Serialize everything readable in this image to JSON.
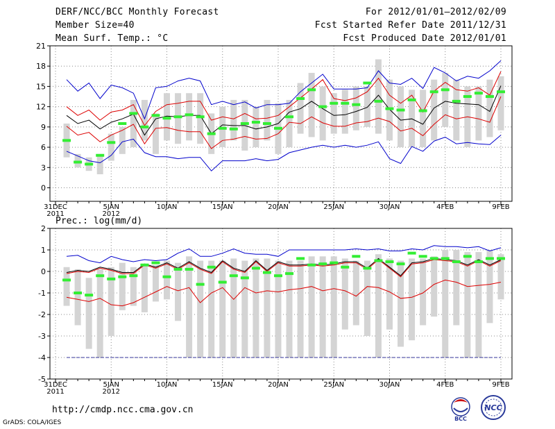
{
  "header": {
    "title": "DERF/NCC/BCC Monthly Forecast",
    "member": "Member Size=40",
    "variable": "Mean Surf. Temp.: °C",
    "period": "For 2012/01/01–2012/02/09",
    "started": "Fcst Started Refer Date 2011/12/31",
    "produced": "Fcst Produced Date 2012/01/01"
  },
  "footer": {
    "url": "http://cmdp.ncc.cma.gov.cn",
    "credit": "GrADS: COLA/IGES",
    "logo_left": "BCC",
    "logo_right": "NCC"
  },
  "chart_data": [
    {
      "type": "box-ensemble",
      "title": "Mean Surf. Temp.: °C",
      "ylim": [
        -2,
        21
      ],
      "yticks": [
        0,
        3,
        6,
        9,
        12,
        15,
        18,
        21
      ],
      "xlim": [
        0,
        40
      ],
      "xticks": [
        {
          "d": 0,
          "label": "31DEC",
          "sub": "2011"
        },
        {
          "d": 5,
          "label": "5JAN",
          "sub": "2012"
        },
        {
          "d": 10,
          "label": "10JAN"
        },
        {
          "d": 15,
          "label": "15JAN"
        },
        {
          "d": 20,
          "label": "20JAN"
        },
        {
          "d": 25,
          "label": "25JAN"
        },
        {
          "d": 30,
          "label": "30JAN"
        },
        {
          "d": 35,
          "label": "4FEB"
        },
        {
          "d": 40,
          "label": "9FEB"
        }
      ],
      "series": [
        {
          "name": "max",
          "color": "#0000cc",
          "values": [
            16,
            14.3,
            15.5,
            13.2,
            15.2,
            14.8,
            14,
            10.2,
            14.8,
            15,
            15.8,
            16.2,
            15.8,
            12.3,
            12.8,
            12.3,
            12.7,
            11.8,
            12.3,
            12.3,
            12.5,
            14.2,
            15.5,
            16.8,
            14.6,
            14.6,
            14.6,
            14.8,
            17.3,
            15.5,
            15.3,
            16.2,
            14.7,
            17.8,
            17,
            15.8,
            16.5,
            16.2,
            17.3,
            18.8
          ]
        },
        {
          "name": "upper",
          "color": "#dd0000",
          "values": [
            12,
            10.7,
            11.5,
            10,
            11.2,
            11.5,
            12.3,
            9.2,
            11.3,
            12.3,
            12.5,
            12.8,
            12.8,
            10,
            10.5,
            10.2,
            11,
            10.2,
            10.3,
            10.7,
            12,
            13.3,
            14.6,
            16,
            13.2,
            12.9,
            13.3,
            14.2,
            16.2,
            13.7,
            12.5,
            13.7,
            11.2,
            14.3,
            15.6,
            14.5,
            14.3,
            14.8,
            13.7,
            17.2
          ]
        },
        {
          "name": "mean",
          "color": "#000000",
          "values": [
            10.7,
            9.5,
            10,
            8.7,
            9.7,
            10.2,
            10.9,
            7.8,
            10.2,
            10.6,
            10.5,
            10.7,
            10.7,
            8,
            9.3,
            9.2,
            9.2,
            8.7,
            9,
            9.5,
            11.2,
            11.7,
            12.8,
            11.7,
            10.7,
            10.8,
            11.3,
            11.9,
            13.7,
            11.6,
            10,
            10.2,
            9.4,
            11.8,
            12.8,
            12.5,
            12.4,
            12.3,
            11.3,
            15.1
          ]
        },
        {
          "name": "lower",
          "color": "#dd0000",
          "values": [
            9.1,
            7.8,
            8.2,
            6.8,
            7.8,
            8.5,
            9.4,
            6.5,
            8.8,
            8.9,
            8.5,
            8.3,
            8.3,
            5.8,
            7,
            7.2,
            7.6,
            7.2,
            7.3,
            8,
            9.7,
            9.5,
            10.5,
            9.6,
            9.1,
            9.1,
            9.6,
            9.8,
            10.3,
            9.8,
            8.4,
            8.8,
            7.7,
            9.4,
            10.8,
            10.2,
            10.5,
            10.2,
            9.7,
            13.5
          ]
        },
        {
          "name": "min",
          "color": "#0000cc",
          "values": [
            5.4,
            4.7,
            4,
            3.7,
            4.8,
            6.8,
            7.2,
            5.2,
            4.6,
            4.6,
            4.3,
            4.5,
            4.5,
            2.5,
            4,
            4,
            4,
            4.3,
            4,
            4.2,
            5.2,
            5.6,
            6,
            6.3,
            6,
            6.3,
            6,
            6.3,
            6.8,
            4.3,
            3.6,
            6.1,
            5.4,
            6.9,
            7.5,
            6.5,
            6.7,
            6.5,
            6.4,
            7.8
          ]
        }
      ],
      "boxes": [
        [
          4.5,
          9.5
        ],
        [
          3,
          5
        ],
        [
          2.5,
          4.5
        ],
        [
          2,
          5
        ],
        [
          4,
          8
        ],
        [
          5,
          9
        ],
        [
          6,
          13
        ],
        [
          7,
          13
        ],
        [
          5,
          11
        ],
        [
          7,
          14
        ],
        [
          6.5,
          14
        ],
        [
          7,
          14
        ],
        [
          6.5,
          14
        ],
        [
          5,
          11
        ],
        [
          6,
          12
        ],
        [
          7,
          13
        ],
        [
          5.5,
          13
        ],
        [
          6,
          12
        ],
        [
          7,
          13
        ],
        [
          5,
          12.5
        ],
        [
          6,
          13
        ],
        [
          8,
          15.5
        ],
        [
          7.5,
          17
        ],
        [
          7,
          15
        ],
        [
          8,
          14
        ],
        [
          8,
          14.5
        ],
        [
          8.5,
          15
        ],
        [
          9,
          15
        ],
        [
          8,
          19
        ],
        [
          7,
          16
        ],
        [
          6,
          15
        ],
        [
          6,
          14.5
        ],
        [
          6,
          14.5
        ],
        [
          7,
          16
        ],
        [
          9,
          17
        ],
        [
          7,
          16
        ],
        [
          6,
          15
        ],
        [
          7,
          15
        ],
        [
          7.5,
          16
        ],
        [
          8.5,
          16.5
        ]
      ],
      "obs": [
        7,
        3.8,
        3.5,
        4.8,
        6.7,
        9.5,
        11,
        9,
        10.7,
        10.3,
        10.5,
        10.8,
        10.5,
        8,
        8.8,
        8.7,
        9.5,
        9.7,
        9.5,
        8.8,
        10.5,
        13.2,
        14.5,
        12,
        12.5,
        12.5,
        12.3,
        15.5,
        12.8,
        11.7,
        11.5,
        13,
        11.4,
        14.2,
        14.5,
        12.8,
        13.5,
        14,
        13.5,
        14.2
      ]
    },
    {
      "type": "box-ensemble",
      "title": "Prec.: log(mm/d)",
      "ylim": [
        -5,
        2
      ],
      "yticks": [
        -5,
        -4,
        -3,
        -2,
        -1,
        0,
        1,
        2
      ],
      "xlim": [
        0,
        40
      ],
      "xticks": [
        {
          "d": 0,
          "label": "31DEC",
          "sub": "2011"
        },
        {
          "d": 5,
          "label": "5JAN",
          "sub": "2012"
        },
        {
          "d": 10,
          "label": "10JAN"
        },
        {
          "d": 15,
          "label": "15JAN"
        },
        {
          "d": 20,
          "label": "20JAN"
        },
        {
          "d": 25,
          "label": "25JAN"
        },
        {
          "d": 30,
          "label": "30JAN"
        },
        {
          "d": 35,
          "label": "4FEB"
        },
        {
          "d": 40,
          "label": "9FEB"
        }
      ],
      "floor": -4,
      "series": [
        {
          "name": "max",
          "color": "#0000cc",
          "values": [
            0.7,
            0.75,
            0.5,
            0.4,
            0.7,
            0.55,
            0.45,
            0.55,
            0.5,
            0.55,
            0.85,
            1.05,
            0.7,
            0.7,
            0.85,
            1.05,
            0.85,
            0.8,
            0.8,
            0.7,
            1.0,
            1.0,
            1.0,
            1.0,
            1.0,
            1.0,
            1.05,
            1.0,
            1.05,
            0.95,
            0.95,
            1.05,
            1.0,
            1.2,
            1.15,
            1.15,
            1.1,
            1.15,
            0.95,
            1.1
          ]
        },
        {
          "name": "mean",
          "color": "#000000",
          "values": [
            -0.05,
            0.05,
            0.0,
            0.2,
            0.1,
            -0.05,
            -0.05,
            0.35,
            0.2,
            0.4,
            0.15,
            0.45,
            0.15,
            -0.05,
            0.5,
            0.15,
            0.0,
            0.5,
            0.05,
            0.45,
            0.3,
            0.3,
            0.35,
            0.3,
            0.35,
            0.45,
            0.45,
            0.15,
            0.6,
            0.2,
            -0.2,
            0.4,
            0.45,
            0.6,
            0.55,
            0.5,
            0.3,
            0.55,
            0.3,
            0.55
          ]
        },
        {
          "name": "upper",
          "color": "#dd0000",
          "values": [
            -0.1,
            0.0,
            -0.05,
            0.15,
            0.05,
            -0.1,
            -0.1,
            0.3,
            0.15,
            0.35,
            0.1,
            0.4,
            0.1,
            -0.1,
            0.45,
            0.1,
            -0.05,
            0.45,
            0.0,
            0.4,
            0.25,
            0.25,
            0.3,
            0.25,
            0.3,
            0.4,
            0.4,
            0.1,
            0.55,
            0.15,
            -0.25,
            0.35,
            0.4,
            0.55,
            0.5,
            0.45,
            0.25,
            0.5,
            0.25,
            0.5
          ]
        },
        {
          "name": "lower",
          "color": "#dd0000",
          "values": [
            -1.2,
            -1.3,
            -1.4,
            -1.25,
            -1.55,
            -1.6,
            -1.45,
            -1.2,
            -0.95,
            -0.7,
            -0.9,
            -0.75,
            -1.45,
            -1.0,
            -0.75,
            -1.3,
            -0.75,
            -1.0,
            -0.9,
            -0.95,
            -0.85,
            -0.8,
            -0.7,
            -0.9,
            -0.8,
            -0.9,
            -1.15,
            -0.7,
            -0.75,
            -0.95,
            -1.25,
            -1.2,
            -1.0,
            -0.6,
            -0.4,
            -0.5,
            -0.7,
            -0.65,
            -0.6,
            -0.5
          ]
        },
        {
          "name": "min",
          "color": "#333399",
          "values": [
            -4,
            -4,
            -4,
            -4,
            -4,
            -4,
            -4,
            -4,
            -4,
            -4,
            -4,
            -4,
            -4,
            -4,
            -4,
            -4,
            -4,
            -4,
            -4,
            -4,
            -4,
            -4,
            -4,
            -4,
            -4,
            -4,
            -4,
            -4,
            -4,
            -4,
            -4,
            -4,
            -4,
            -4,
            -4,
            -4,
            -4,
            -4,
            -4,
            -4
          ]
        }
      ],
      "boxes": [
        [
          -1.6,
          0.2
        ],
        [
          -2.5,
          0.1
        ],
        [
          -3.6,
          -0.3
        ],
        [
          -4,
          0.1
        ],
        [
          -3,
          0.2
        ],
        [
          -1.8,
          0.4
        ],
        [
          -1.6,
          0.2
        ],
        [
          -1.9,
          0.3
        ],
        [
          -1.4,
          0.3
        ],
        [
          -1.3,
          0.5
        ],
        [
          -2.3,
          0.4
        ],
        [
          -4,
          0.7
        ],
        [
          -4,
          0.5
        ],
        [
          -4,
          0.5
        ],
        [
          -4,
          0.5
        ],
        [
          -4,
          0.6
        ],
        [
          -4,
          0.5
        ],
        [
          -4,
          0.6
        ],
        [
          -4,
          0.6
        ],
        [
          -4,
          0.5
        ],
        [
          -4,
          0.5
        ],
        [
          -4,
          0.5
        ],
        [
          -4,
          0.7
        ],
        [
          -4,
          0.7
        ],
        [
          -4,
          0.7
        ],
        [
          -2.7,
          0.6
        ],
        [
          -2.5,
          0.5
        ],
        [
          -3,
          0.5
        ],
        [
          -4,
          0.8
        ],
        [
          -2.7,
          0.6
        ],
        [
          -3.5,
          0.5
        ],
        [
          -3.2,
          0.6
        ],
        [
          -2.5,
          0.6
        ],
        [
          -2.1,
          0.7
        ],
        [
          -4,
          1.0
        ],
        [
          -2.5,
          1.0
        ],
        [
          -4,
          0.9
        ],
        [
          -4,
          0.9
        ],
        [
          -2.4,
          1.0
        ],
        [
          -1.3,
          0.8
        ]
      ],
      "obs": [
        -0.4,
        -1.0,
        -1.1,
        -0.2,
        -0.35,
        -0.25,
        -0.2,
        0.3,
        0.4,
        -0.25,
        0.1,
        0.1,
        -0.6,
        0.2,
        -0.5,
        -0.2,
        -0.3,
        0.15,
        -0.05,
        -0.2,
        -0.1,
        0.6,
        0.3,
        0.35,
        0.4,
        0.2,
        0.7,
        0.15,
        0.5,
        0.45,
        0.35,
        0.85,
        0.7,
        0.6,
        0.6,
        0.45,
        0.7,
        0.45,
        0.6,
        0.6
      ]
    }
  ],
  "lower_title": "Prec.: log(mm/d)"
}
